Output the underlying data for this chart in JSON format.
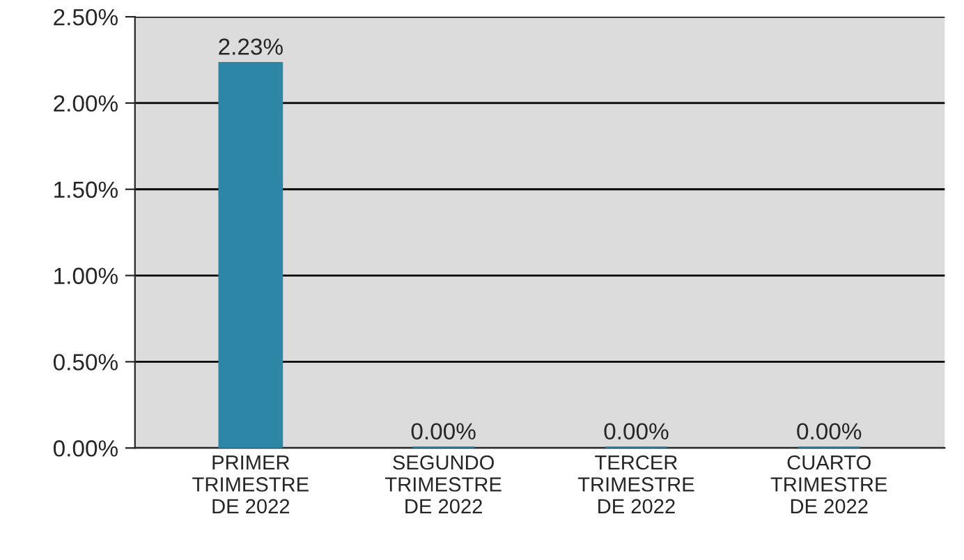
{
  "chart_data": {
    "type": "bar",
    "categories": [
      "PRIMER\nTRIMESTRE\nDE 2022",
      "SEGUNDO\nTRIMESTRE\nDE 2022",
      "TERCER\nTRIMESTRE\nDE 2022",
      "CUARTO\nTRIMESTRE\nDE 2022"
    ],
    "values": [
      2.23,
      0,
      0,
      0
    ],
    "value_labels": [
      "2.23%",
      "0.00%",
      "0.00%",
      "0.00%"
    ],
    "color": "#2e86a6",
    "ylim": [
      0,
      2.5
    ],
    "yticks": [
      {
        "value": 0,
        "label": "0.00%"
      },
      {
        "value": 0.5,
        "label": "0.50%"
      },
      {
        "value": 1.0,
        "label": "1.00%"
      },
      {
        "value": 1.5,
        "label": "1.50%"
      },
      {
        "value": 2.0,
        "label": "2.00%"
      },
      {
        "value": 2.5,
        "label": "2.50%"
      }
    ],
    "grid": "y",
    "legend": false
  }
}
